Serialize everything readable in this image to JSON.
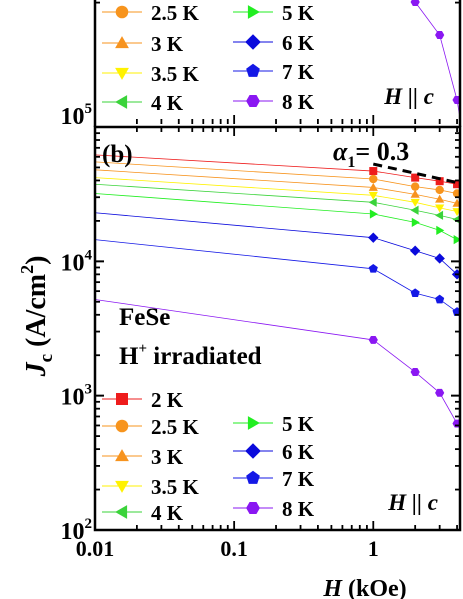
{
  "chart_data": [
    {
      "type": "scatter",
      "title": "",
      "xlabel": "",
      "ylabel": "",
      "xscale": "log",
      "yscale": "log",
      "ylim_labels": [
        "10⁵"
      ],
      "grid": false,
      "legend": {
        "position": "upper",
        "entries_visible": [
          "2.5 K",
          "3 K",
          "3.5 K",
          "4 K",
          "5 K",
          "6 K",
          "7 K",
          "8 K"
        ]
      },
      "annotation": "H || c",
      "notes_visible": "Top panel is cropped; only its lower portion (legend, H || c, and the 8 K trace near 10⁵) is visible."
    },
    {
      "type": "scatter",
      "panel_label": "(b)",
      "sample": "FeSe",
      "treatment": "H+ irradiated",
      "field_direction": "H || c",
      "alpha_label": "α",
      "alpha_subscript": "1",
      "alpha_value": "= 0.3",
      "xlabel_var": "H",
      "xlabel_unit": " (kOe)",
      "ylabel_var": "J",
      "ylabel_sub": "c",
      "ylabel_unit_open": " (A/cm",
      "ylabel_unit_sup": "2",
      "ylabel_unit_close": ")",
      "xscale": "log",
      "yscale": "log",
      "xlim": [
        0.01,
        4.2
      ],
      "ylim": [
        100,
        100000
      ],
      "x_ticks": [
        {
          "value": 0.01,
          "label": "0.01"
        },
        {
          "value": 0.1,
          "label": "0.1"
        },
        {
          "value": 1,
          "label": "1"
        }
      ],
      "y_ticks": [
        {
          "value": 100,
          "base": "10",
          "exp": "2"
        },
        {
          "value": 1000,
          "base": "10",
          "exp": "3"
        },
        {
          "value": 10000,
          "base": "10",
          "exp": "4"
        },
        {
          "value": 100000,
          "base": "10",
          "exp": "5"
        }
      ],
      "x": [
        1,
        2,
        3,
        4
      ],
      "series": [
        {
          "name": "2 K",
          "color": "#ee1c1c",
          "marker": "square",
          "values": [
            47000,
            42000,
            39500,
            37500
          ],
          "fit_at_0_01": 62000
        },
        {
          "name": "2.5 K",
          "color": "#f7941d",
          "marker": "circle",
          "values": [
            41000,
            36000,
            34000,
            32000
          ],
          "fit_at_0_01": 55000
        },
        {
          "name": "3 K",
          "color": "#f7931e",
          "marker": "triangle-up",
          "values": [
            35500,
            31500,
            29000,
            27000
          ],
          "fit_at_0_01": 48000
        },
        {
          "name": "3.5 K",
          "color": "#fff200",
          "marker": "triangle-down",
          "values": [
            31000,
            27500,
            25000,
            23500
          ],
          "fit_at_0_01": 42000
        },
        {
          "name": "4 K",
          "color": "#3ad33a",
          "marker": "triangle-left",
          "values": [
            27500,
            24000,
            22000,
            20500
          ],
          "fit_at_0_01": 37500
        },
        {
          "name": "5 K",
          "color": "#22ee22",
          "marker": "triangle-right",
          "values": [
            22500,
            19500,
            17000,
            14500
          ],
          "fit_at_0_01": 32000
        },
        {
          "name": "6 K",
          "color": "#0a0adc",
          "marker": "diamond",
          "values": [
            15000,
            12000,
            10500,
            8000
          ],
          "fit_at_0_01": 23000
        },
        {
          "name": "7 K",
          "color": "#1418e6",
          "marker": "pentagon",
          "values": [
            8800,
            5800,
            5200,
            4200
          ],
          "fit_at_0_01": 14500
        },
        {
          "name": "8 K",
          "color": "#8a17f2",
          "marker": "hexagon",
          "values": [
            2600,
            1500,
            1050,
            620
          ],
          "fit_at_0_01": 5200
        }
      ],
      "fit_line": {
        "style": "dashed",
        "color": "#000000",
        "x": [
          1,
          4
        ],
        "y": [
          53000,
          38000
        ]
      }
    }
  ]
}
